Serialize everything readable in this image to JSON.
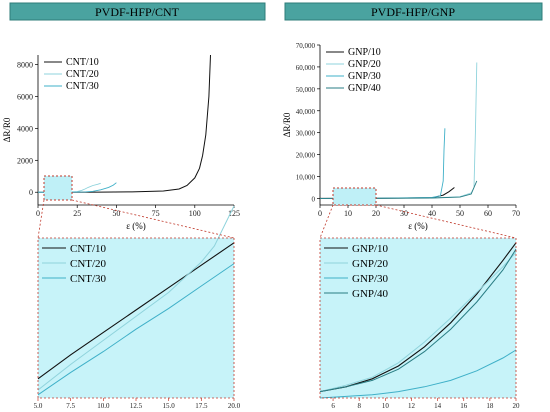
{
  "headers": {
    "left": "PVDF-HFP/CNT",
    "right": "PVDF-HFP/GNP"
  },
  "colors": {
    "header_fill": "#4aa3a0",
    "zoom_fill": "#c7f3f9",
    "zoom_border": "#c0392b",
    "series": [
      "#111111",
      "#8fd3dc",
      "#3fb0c8",
      "#2a7d84"
    ]
  },
  "chart_data": [
    {
      "id": "cnt_main",
      "type": "line",
      "xlabel": "ε (%)",
      "ylabel": "ΔR/R0",
      "xlim": [
        0,
        125
      ],
      "ylim": [
        -800,
        8600
      ],
      "xticks": [
        "0",
        "25",
        "50",
        "75",
        "100",
        "125"
      ],
      "yticks": [
        "0",
        "2000",
        "4000",
        "6000",
        "8000"
      ],
      "legend": "top-left",
      "series": [
        {
          "name": "CNT/10",
          "x": [
            0,
            20,
            40,
            60,
            80,
            90,
            95,
            100,
            103,
            105,
            107,
            109,
            110
          ],
          "y": [
            0,
            2,
            8,
            20,
            80,
            200,
            420,
            900,
            1500,
            2300,
            3600,
            6000,
            8600
          ]
        },
        {
          "name": "CNT/20",
          "x": [
            0,
            10,
            20,
            25,
            28,
            30,
            32,
            35,
            38,
            40
          ],
          "y": [
            0,
            4,
            10,
            40,
            120,
            200,
            300,
            420,
            500,
            560
          ]
        },
        {
          "name": "CNT/30",
          "x": [
            0,
            10,
            20,
            30,
            35,
            40,
            45,
            48,
            50
          ],
          "y": [
            0,
            3,
            8,
            20,
            60,
            150,
            300,
            450,
            600
          ]
        }
      ]
    },
    {
      "id": "cnt_zoom",
      "type": "line",
      "xlim": [
        5,
        20
      ],
      "xticks": [
        "5.0",
        "7.5",
        "10.0",
        "12.5",
        "15.0",
        "17.5",
        "20.0"
      ],
      "legend": "top-left",
      "series": [
        {
          "name": "CNT/10",
          "x": [
            5,
            7.5,
            10,
            12.5,
            15,
            17.5,
            20
          ],
          "y": [
            0.12,
            0.27,
            0.41,
            0.55,
            0.69,
            0.83,
            0.97
          ]
        },
        {
          "name": "CNT/20",
          "x": [
            5,
            7.5,
            10,
            12.5,
            15,
            17.5,
            18.5,
            20
          ],
          "y": [
            0.05,
            0.21,
            0.36,
            0.51,
            0.66,
            0.85,
            0.95,
            1.2
          ]
        },
        {
          "name": "CNT/30",
          "x": [
            5,
            7.5,
            10,
            12.5,
            15,
            17.5,
            20
          ],
          "y": [
            0.02,
            0.16,
            0.29,
            0.43,
            0.56,
            0.7,
            0.84
          ]
        }
      ]
    },
    {
      "id": "gnp_main",
      "type": "line",
      "xlabel": "ε (%)",
      "ylabel": "ΔR/R0",
      "xlim": [
        0,
        70
      ],
      "ylim": [
        -3000,
        70000
      ],
      "xticks": [
        "0",
        "10",
        "20",
        "30",
        "40",
        "50",
        "60",
        "70"
      ],
      "yticks": [
        "0",
        "10,000",
        "20,000",
        "30,000",
        "40,000",
        "50,000",
        "60,000",
        "70,000"
      ],
      "legend": "top-left",
      "series": [
        {
          "name": "GNP/10",
          "x": [
            0,
            20,
            40,
            44,
            46,
            47,
            48
          ],
          "y": [
            0,
            50,
            300,
            1500,
            3000,
            4000,
            5000
          ]
        },
        {
          "name": "GNP/20",
          "x": [
            0,
            20,
            40,
            50,
            54,
            55,
            55.5,
            56
          ],
          "y": [
            0,
            40,
            200,
            800,
            2500,
            5000,
            30000,
            62000
          ]
        },
        {
          "name": "GNP/30",
          "x": [
            0,
            20,
            40,
            43,
            44,
            44.3,
            44.6
          ],
          "y": [
            0,
            60,
            400,
            1200,
            8000,
            22000,
            32000
          ]
        },
        {
          "name": "GNP/40",
          "x": [
            0,
            20,
            40,
            50,
            54,
            55,
            56
          ],
          "y": [
            0,
            40,
            200,
            600,
            2000,
            5000,
            8000
          ]
        }
      ]
    },
    {
      "id": "gnp_zoom",
      "type": "line",
      "xlim": [
        5,
        20
      ],
      "xticks": [
        "6",
        "8",
        "10",
        "12",
        "14",
        "16",
        "18",
        "20"
      ],
      "legend": "top-left",
      "series": [
        {
          "name": "GNP/10",
          "x": [
            5,
            7,
            9,
            11,
            13,
            15,
            17,
            19,
            20
          ],
          "y": [
            0.04,
            0.07,
            0.12,
            0.2,
            0.32,
            0.47,
            0.65,
            0.86,
            0.97
          ]
        },
        {
          "name": "GNP/20",
          "x": [
            5,
            7,
            9,
            11,
            13,
            15,
            17,
            19,
            20
          ],
          "y": [
            0.04,
            0.08,
            0.13,
            0.22,
            0.35,
            0.5,
            0.66,
            0.82,
            0.91
          ]
        },
        {
          "name": "GNP/30",
          "x": [
            5,
            7,
            9,
            11,
            13,
            15,
            17,
            19,
            20
          ],
          "y": [
            0.0,
            0.01,
            0.02,
            0.04,
            0.07,
            0.11,
            0.17,
            0.25,
            0.3
          ]
        },
        {
          "name": "GNP/40",
          "x": [
            5,
            7,
            9,
            11,
            13,
            15,
            17,
            19,
            20
          ],
          "y": [
            0.04,
            0.07,
            0.11,
            0.18,
            0.29,
            0.43,
            0.6,
            0.8,
            0.93
          ]
        }
      ]
    }
  ]
}
